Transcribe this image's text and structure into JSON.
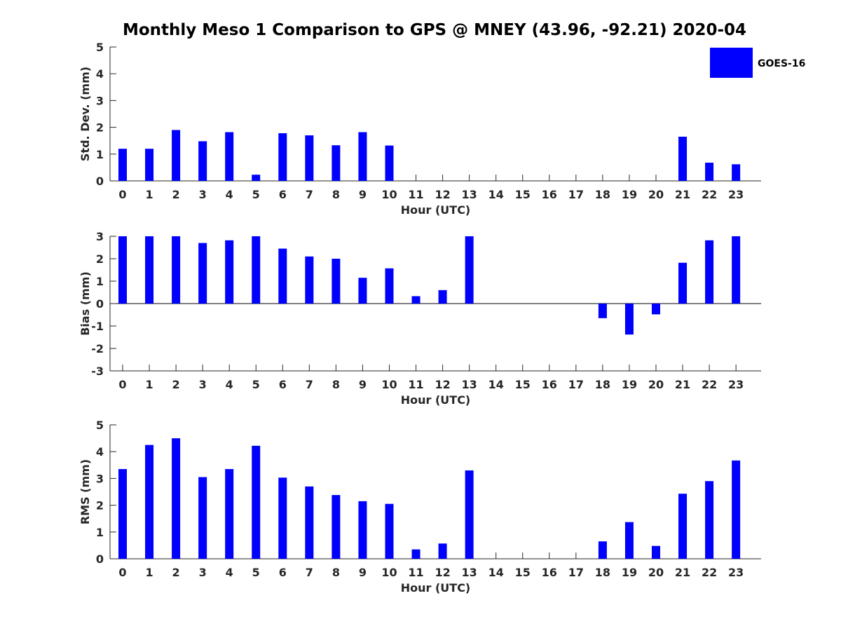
{
  "title": "Monthly Meso 1 Comparison to GPS @ MNEY (43.96, -92.21) 2020-04",
  "legend": {
    "label": "GOES-16",
    "color": "#0000ff",
    "placement": "top-right"
  },
  "bar_color": "#0000ff",
  "chart_data": [
    {
      "type": "bar",
      "ylabel": "Std. Dev. (mm)",
      "xlabel": "Hour (UTC)",
      "ylim": [
        0,
        5
      ],
      "yticks": [
        0,
        1,
        2,
        3,
        4,
        5
      ],
      "categories": [
        "0",
        "1",
        "2",
        "3",
        "4",
        "5",
        "6",
        "7",
        "8",
        "9",
        "10",
        "11",
        "12",
        "13",
        "14",
        "15",
        "16",
        "17",
        "18",
        "19",
        "20",
        "21",
        "22",
        "23"
      ],
      "series": [
        {
          "name": "GOES-16",
          "values": [
            1.2,
            1.2,
            1.9,
            1.48,
            1.82,
            0.23,
            1.78,
            1.7,
            1.33,
            1.82,
            1.32,
            null,
            null,
            null,
            null,
            null,
            null,
            null,
            null,
            null,
            null,
            1.65,
            0.68,
            0.62
          ]
        }
      ]
    },
    {
      "type": "bar",
      "ylabel": "Bias (mm)",
      "xlabel": "Hour (UTC)",
      "ylim": [
        -3,
        3
      ],
      "yticks": [
        -3,
        -2,
        -1,
        0,
        1,
        2,
        3
      ],
      "categories": [
        "0",
        "1",
        "2",
        "3",
        "4",
        "5",
        "6",
        "7",
        "8",
        "9",
        "10",
        "11",
        "12",
        "13",
        "14",
        "15",
        "16",
        "17",
        "18",
        "19",
        "20",
        "21",
        "22",
        "23"
      ],
      "series": [
        {
          "name": "GOES-16",
          "values": [
            3.0,
            3.0,
            3.0,
            2.7,
            2.82,
            3.0,
            2.45,
            2.1,
            2.0,
            1.15,
            1.57,
            0.33,
            0.6,
            3.0,
            null,
            null,
            null,
            null,
            -0.65,
            -1.38,
            -0.48,
            1.82,
            2.82,
            3.0
          ]
        }
      ]
    },
    {
      "type": "bar",
      "ylabel": "RMS (mm)",
      "xlabel": "Hour (UTC)",
      "ylim": [
        0,
        5
      ],
      "yticks": [
        0,
        1,
        2,
        3,
        4,
        5
      ],
      "categories": [
        "0",
        "1",
        "2",
        "3",
        "4",
        "5",
        "6",
        "7",
        "8",
        "9",
        "10",
        "11",
        "12",
        "13",
        "14",
        "15",
        "16",
        "17",
        "18",
        "19",
        "20",
        "21",
        "22",
        "23"
      ],
      "series": [
        {
          "name": "GOES-16",
          "values": [
            3.35,
            4.25,
            4.5,
            3.05,
            3.35,
            4.22,
            3.03,
            2.7,
            2.38,
            2.15,
            2.05,
            0.35,
            0.57,
            3.3,
            null,
            null,
            null,
            null,
            0.65,
            1.37,
            0.48,
            2.43,
            2.9,
            3.67
          ]
        }
      ]
    }
  ]
}
